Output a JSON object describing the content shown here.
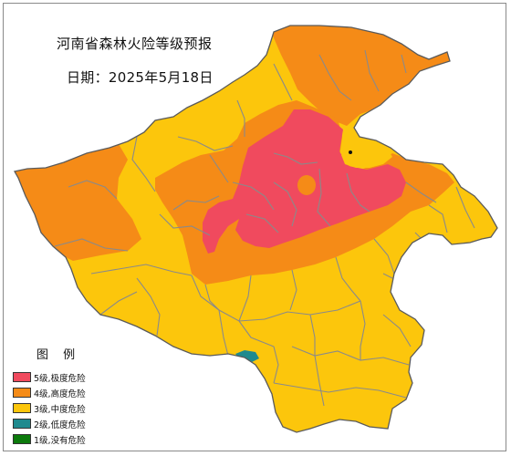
{
  "title": "河南省森林火险等级预报",
  "date_line": "日期：2025年5月18日",
  "legend": {
    "title": "图 例",
    "items": [
      {
        "label": "5级,极度危险",
        "color": "#f04a5e"
      },
      {
        "label": "4级,高度危险",
        "color": "#f58b17"
      },
      {
        "label": "3级,中度危险",
        "color": "#fcc60c"
      },
      {
        "label": "2级,低度危险",
        "color": "#1f8a8e"
      },
      {
        "label": "1级,没有危险",
        "color": "#0c7a0c"
      }
    ]
  },
  "colors": {
    "border": "#5a5a5a",
    "county_lines": "#8a8a8a"
  }
}
